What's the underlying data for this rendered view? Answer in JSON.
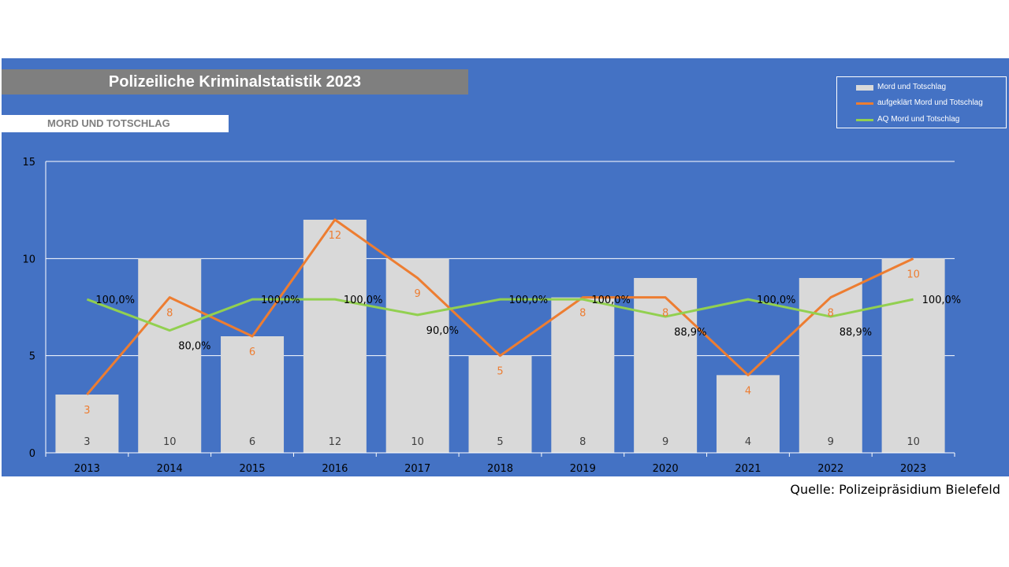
{
  "header": {
    "title": "Polizeiliche Kriminalstatistik 2023",
    "subtitle": "MORD UND TOTSCHLAG"
  },
  "source": "Quelle: Polizeipräsidium Bielefeld",
  "colors": {
    "panel": "#4472C4",
    "bars": "#D9D9D9",
    "aufgeklaert": "#ED7D31",
    "aq": "#92D050",
    "grid": "#FFFFFF"
  },
  "chart_data": {
    "type": "bar",
    "categories": [
      "2013",
      "2014",
      "2015",
      "2016",
      "2017",
      "2018",
      "2019",
      "2020",
      "2021",
      "2022",
      "2023"
    ],
    "ylim": [
      0,
      15
    ],
    "yticks": [
      "0",
      "5",
      "10",
      "15"
    ],
    "grid": true,
    "legend_position": "top-right",
    "series": [
      {
        "name": "Mord und Totschlag",
        "type": "bar",
        "values": [
          3,
          10,
          6,
          12,
          10,
          5,
          8,
          9,
          4,
          9,
          10
        ],
        "labels": [
          "3",
          "10",
          "6",
          "12",
          "10",
          "5",
          "8",
          "9",
          "4",
          "9",
          "10"
        ]
      },
      {
        "name": "aufgeklärt Mord und Totschlag",
        "type": "line",
        "values": [
          3,
          8,
          6,
          12,
          9,
          5,
          8,
          8,
          4,
          8,
          10
        ],
        "labels": [
          "3",
          "8",
          "6",
          "12",
          "9",
          "5",
          "8",
          "8",
          "4",
          "8",
          "10"
        ]
      },
      {
        "name": "AQ Mord und Totschlag",
        "type": "line",
        "values": [
          100.0,
          80.0,
          100.0,
          100.0,
          90.0,
          100.0,
          100.0,
          88.9,
          100.0,
          88.9,
          100.0
        ],
        "labels": [
          "100,0%",
          "80,0%",
          "100,0%",
          "100,0%",
          "90,0%",
          "100,0%",
          "100,0%",
          "88,9%",
          "100,0%",
          "88,9%",
          "100,0%"
        ]
      }
    ]
  }
}
